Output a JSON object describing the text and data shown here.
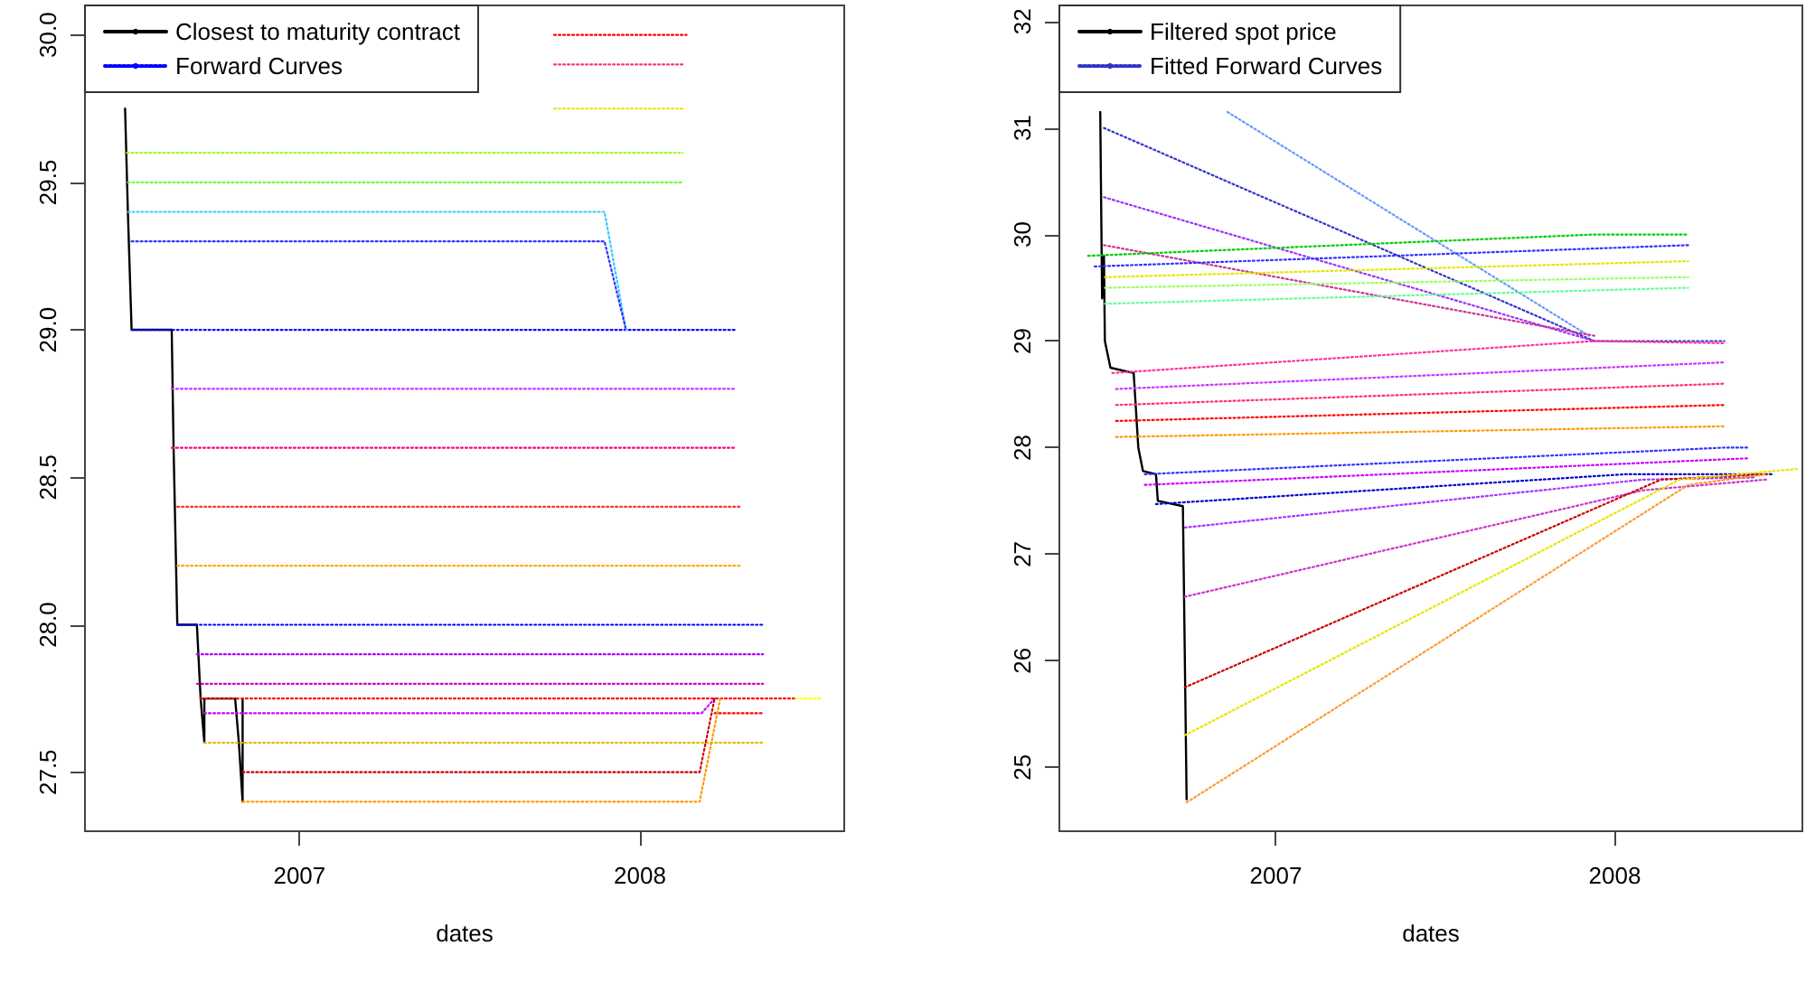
{
  "chart_data": [
    {
      "type": "line",
      "xlabel": "dates",
      "xlim": [
        "2006-05-16",
        "2008-08-07"
      ],
      "xticks": [
        "2007",
        "2008"
      ],
      "ylim": [
        27.3,
        30.1
      ],
      "yticks": [
        27.5,
        {
          "value": 28,
          "label": "28.0"
        },
        28.5,
        {
          "value": 29,
          "label": "29.0"
        },
        29.5,
        {
          "value": 30,
          "label": "30.0"
        }
      ],
      "legend": "top left",
      "marker": "none",
      "line_style": "dotted",
      "series": [
        {
          "name": "Closest to maturity contract",
          "color": "#000000",
          "line_style": "solid",
          "x": [
            "2006-06-28",
            "2006-07-01",
            "2006-07-05",
            "2006-08-17",
            "2006-08-19",
            "2006-08-23",
            "2006-09-13",
            "2006-09-17",
            "2006-09-21",
            "2006-09-21",
            "2006-10-24",
            "2006-10-28",
            "2006-11-01",
            "2006-11-01"
          ],
          "values": [
            29.75,
            29.4,
            29.0,
            29.0,
            28.6,
            28.0,
            28.0,
            27.75,
            27.6,
            27.75,
            27.75,
            27.6,
            27.4,
            27.75
          ]
        },
        {
          "name": "Forward Curves",
          "color": "#0000ff",
          "x": [
            "2006-07-05",
            "2008-04-13"
          ],
          "values": [
            29.0,
            29.0
          ]
        },
        {
          "color": "#ff0000",
          "x": [
            "2007-10-01",
            "2008-02-20"
          ],
          "values": [
            30.0,
            30.0
          ]
        },
        {
          "color": "#ff3366",
          "x": [
            "2007-10-01",
            "2008-02-16"
          ],
          "values": [
            29.9,
            29.9
          ]
        },
        {
          "color": "#e6e600",
          "x": [
            "2007-10-01",
            "2008-02-16"
          ],
          "values": [
            29.75,
            29.75
          ]
        },
        {
          "color": "#99ff33",
          "x": [
            "2006-06-30",
            "2008-02-16"
          ],
          "values": [
            29.6,
            29.6
          ]
        },
        {
          "color": "#66ff33",
          "x": [
            "2006-07-01",
            "2008-02-16"
          ],
          "values": [
            29.5,
            29.5
          ]
        },
        {
          "color": "#33ccff",
          "x": [
            "2006-07-01",
            "2007-11-24",
            "2007-12-17"
          ],
          "values": [
            29.4,
            29.4,
            29.0
          ]
        },
        {
          "color": "#3333ff",
          "x": [
            "2006-07-05",
            "2007-11-24",
            "2007-12-17"
          ],
          "values": [
            29.3,
            29.3,
            29.0
          ]
        },
        {
          "color": "#cc33ff",
          "x": [
            "2006-08-17",
            "2008-04-13"
          ],
          "values": [
            28.8,
            28.8
          ]
        },
        {
          "color": "#ff0080",
          "x": [
            "2006-08-17",
            "2008-04-13"
          ],
          "values": [
            28.6,
            28.6
          ]
        },
        {
          "color": "#ff3333",
          "x": [
            "2006-08-23",
            "2008-04-19"
          ],
          "values": [
            28.4,
            28.4
          ]
        },
        {
          "color": "#ffaa00",
          "x": [
            "2006-08-23",
            "2008-04-19"
          ],
          "values": [
            28.2,
            28.2
          ]
        },
        {
          "color": "#0000ff",
          "x": [
            "2006-08-23",
            "2008-05-12"
          ],
          "values": [
            28.0,
            28.0
          ]
        },
        {
          "color": "#aa00ff",
          "x": [
            "2006-09-13",
            "2008-05-12"
          ],
          "values": [
            27.9,
            27.9
          ]
        },
        {
          "color": "#cc00cc",
          "x": [
            "2006-09-13",
            "2008-05-12"
          ],
          "values": [
            27.8,
            27.8
          ]
        },
        {
          "color": "#ff0000",
          "x": [
            "2006-09-17",
            "2008-06-16"
          ],
          "values": [
            27.75,
            27.75
          ]
        },
        {
          "color": "#ffff00",
          "x": [
            "2008-06-16",
            "2008-07-15"
          ],
          "values": [
            27.75,
            27.75
          ]
        },
        {
          "color": "#cc00ff",
          "x": [
            "2006-09-21",
            "2008-03-07",
            "2008-03-21"
          ],
          "values": [
            27.7,
            27.7,
            27.75
          ]
        },
        {
          "color": "#ff0000",
          "x": [
            "2008-03-21",
            "2008-05-12"
          ],
          "values": [
            27.7,
            27.7
          ]
        },
        {
          "color": "#e6b800",
          "x": [
            "2006-09-21",
            "2008-05-12"
          ],
          "values": [
            27.6,
            27.6
          ]
        },
        {
          "color": "#cc0000",
          "x": [
            "2006-11-01",
            "2008-03-05",
            "2008-03-21"
          ],
          "values": [
            27.5,
            27.5,
            27.75
          ]
        },
        {
          "color": "#ff9900",
          "x": [
            "2006-11-01",
            "2008-03-05",
            "2008-03-27"
          ],
          "values": [
            27.4,
            27.4,
            27.75
          ]
        }
      ]
    },
    {
      "type": "line",
      "xlabel": "dates",
      "xlim": [
        "2006-05-13",
        "2008-07-21"
      ],
      "xticks": [
        "2007",
        "2008"
      ],
      "ylim": [
        24.4,
        32.15
      ],
      "yticks": [
        25,
        26,
        27,
        28,
        29,
        30,
        31,
        32
      ],
      "legend": "top left",
      "marker": "none",
      "line_style": "dotted",
      "series": [
        {
          "name": "Filtered spot price",
          "color": "#000000",
          "line_style": "solid",
          "x": [
            "2006-06-26",
            "2006-06-28",
            "2006-06-30",
            "2006-07-01",
            "2006-07-07",
            "2006-08-01",
            "2006-08-06",
            "2006-08-11",
            "2006-08-25",
            "2006-08-27",
            "2006-09-23",
            "2006-09-27"
          ],
          "values": [
            31.15,
            29.4,
            29.8,
            29.0,
            28.75,
            28.7,
            28.0,
            27.78,
            27.75,
            27.5,
            27.45,
            24.7
          ]
        },
        {
          "name": "Fitted Forward Curves",
          "color": "#3333cc",
          "x": [
            "2006-06-30",
            "2007-12-10",
            "2008-04-28"
          ],
          "values": [
            31.0,
            29.0,
            29.0
          ]
        },
        {
          "color": "#6699ff",
          "x": [
            "2006-11-10",
            "2007-12-04"
          ],
          "values": [
            31.15,
            29.05
          ]
        },
        {
          "color": "#9933ff",
          "x": [
            "2006-06-30",
            "2007-12-10"
          ],
          "values": [
            30.35,
            29.0
          ]
        },
        {
          "color": "#cc3399",
          "x": [
            "2006-06-30",
            "2007-12-10"
          ],
          "values": [
            29.9,
            29.05
          ]
        },
        {
          "color": "#00cc00",
          "x": [
            "2006-06-13",
            "2007-12-10",
            "2008-03-20"
          ],
          "values": [
            29.8,
            30.0,
            30.0
          ]
        },
        {
          "color": "#3333ff",
          "x": [
            "2006-06-20",
            "2008-03-20"
          ],
          "values": [
            29.7,
            29.9
          ]
        },
        {
          "color": "#e6e600",
          "x": [
            "2006-07-01",
            "2008-03-20"
          ],
          "values": [
            29.6,
            29.75
          ]
        },
        {
          "color": "#99ff66",
          "x": [
            "2006-07-01",
            "2008-03-20"
          ],
          "values": [
            29.5,
            29.6
          ]
        },
        {
          "color": "#66ff99",
          "x": [
            "2006-07-01",
            "2008-03-20"
          ],
          "values": [
            29.35,
            29.5
          ]
        },
        {
          "color": "#ff3399",
          "x": [
            "2006-07-09",
            "2007-12-10",
            "2008-04-28"
          ],
          "values": [
            28.7,
            29.0,
            28.98
          ]
        },
        {
          "color": "#cc33ff",
          "x": [
            "2006-07-13",
            "2008-04-28"
          ],
          "values": [
            28.55,
            28.8
          ]
        },
        {
          "color": "#ff3366",
          "x": [
            "2006-07-13",
            "2008-04-28"
          ],
          "values": [
            28.4,
            28.6
          ]
        },
        {
          "color": "#ff0000",
          "x": [
            "2006-07-13",
            "2008-04-28"
          ],
          "values": [
            28.25,
            28.4
          ]
        },
        {
          "color": "#ff9900",
          "x": [
            "2006-07-13",
            "2008-04-28"
          ],
          "values": [
            28.1,
            28.2
          ]
        },
        {
          "color": "#3333ff",
          "x": [
            "2006-08-13",
            "2008-04-28",
            "2008-05-24"
          ],
          "values": [
            27.75,
            28.0,
            28.0
          ]
        },
        {
          "color": "#cc00ff",
          "x": [
            "2006-08-13",
            "2008-05-24"
          ],
          "values": [
            27.65,
            27.9
          ]
        },
        {
          "color": "#0000cc",
          "x": [
            "2006-08-25",
            "2008-01-12",
            "2008-06-20"
          ],
          "values": [
            27.47,
            27.75,
            27.75
          ]
        },
        {
          "color": "#aa33ff",
          "x": [
            "2006-09-25",
            "2008-02-01",
            "2008-06-01"
          ],
          "values": [
            27.25,
            27.7,
            27.72
          ]
        },
        {
          "color": "#cc33cc",
          "x": [
            "2006-09-25",
            "2008-02-01",
            "2008-06-12"
          ],
          "values": [
            26.6,
            27.6,
            27.7
          ]
        },
        {
          "color": "#cc0000",
          "x": [
            "2006-09-25",
            "2008-02-20",
            "2008-06-12"
          ],
          "values": [
            25.75,
            27.7,
            27.75
          ]
        },
        {
          "color": "#e6e600",
          "x": [
            "2006-09-25",
            "2008-03-11",
            "2008-07-15"
          ],
          "values": [
            25.3,
            27.7,
            27.8
          ]
        },
        {
          "color": "#ff9933",
          "x": [
            "2006-09-27",
            "2008-03-20",
            "2008-06-12"
          ],
          "values": [
            24.67,
            27.65,
            27.75
          ]
        }
      ]
    }
  ]
}
